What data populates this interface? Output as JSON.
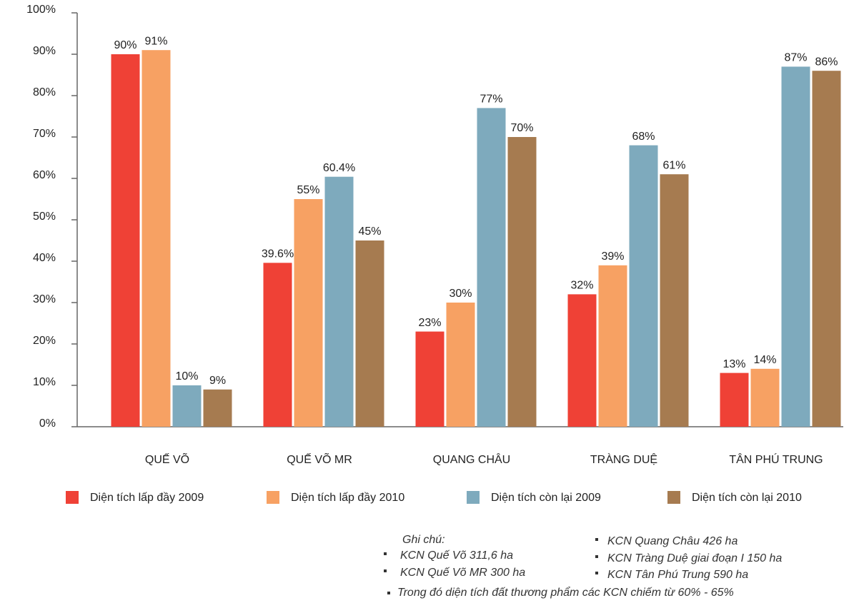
{
  "chart_data": {
    "type": "bar",
    "categories": [
      "QUẾ VÕ",
      "QUẾ VÕ MR",
      "QUANG CHÂU",
      "TRÀNG DUỆ",
      "TÂN PHÚ TRUNG"
    ],
    "series": [
      {
        "name": "Diện tích lấp đầy 2009",
        "color": "#ef4136",
        "values": [
          90,
          39.6,
          23,
          32,
          13
        ],
        "value_labels": [
          "90%",
          "39.6%",
          "23%",
          "32%",
          "13%"
        ]
      },
      {
        "name": "Diện tích lấp đầy 2010",
        "color": "#f7a163",
        "values": [
          91,
          55,
          30,
          39,
          14
        ],
        "value_labels": [
          "91%",
          "55%",
          "30%",
          "39%",
          "14%"
        ]
      },
      {
        "name": "Diện tích còn lại 2009",
        "color": "#7eaabd",
        "values": [
          10,
          60.4,
          77,
          68,
          87
        ],
        "value_labels": [
          "10%",
          "60.4%",
          "77%",
          "68%",
          "87%"
        ]
      },
      {
        "name": "Diện tích còn lại 2010",
        "color": "#a67b50",
        "values": [
          9,
          45,
          70,
          61,
          86
        ],
        "value_labels": [
          "9%",
          "45%",
          "70%",
          "61%",
          "86%"
        ]
      }
    ],
    "ylim": [
      0,
      100
    ],
    "yticks": [
      {
        "value": 0,
        "label": "0%"
      },
      {
        "value": 10,
        "label": "10%"
      },
      {
        "value": 20,
        "label": "20%"
      },
      {
        "value": 30,
        "label": "30%"
      },
      {
        "value": 40,
        "label": "40%"
      },
      {
        "value": 50,
        "label": "50%"
      },
      {
        "value": 60,
        "label": "60%"
      },
      {
        "value": 70,
        "label": "70%"
      },
      {
        "value": 80,
        "label": "80%"
      },
      {
        "value": 90,
        "label": "90%"
      },
      {
        "value": 100,
        "label": "100%"
      }
    ],
    "grid": false,
    "legend": "bottom"
  },
  "notes": {
    "title": "Ghi chú:",
    "left": [
      "KCN Quế Võ 311,6 ha",
      "KCN Quế  Võ MR 300 ha"
    ],
    "right": [
      "KCN Quang Châu 426 ha",
      "KCN Tràng Duệ giai đoạn I 150 ha",
      "KCN Tân Phú Trung 590 ha"
    ],
    "footer": "Trong đó diện tích đất thương phẩm các KCN chiếm từ 60% - 65%"
  }
}
